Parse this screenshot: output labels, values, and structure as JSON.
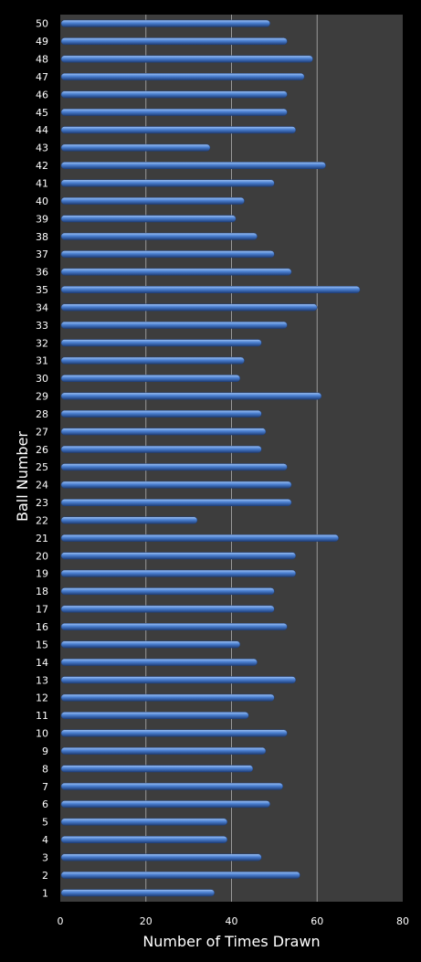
{
  "chart_data": {
    "type": "bar",
    "orientation": "horizontal",
    "xlabel": "Number of Times Drawn",
    "ylabel": "Ball Number",
    "xlim": [
      0,
      80
    ],
    "xticks": [
      0,
      20,
      40,
      60,
      80
    ],
    "grid": "vertical",
    "legend": "none",
    "categories": [
      "1",
      "2",
      "3",
      "4",
      "5",
      "6",
      "7",
      "8",
      "9",
      "10",
      "11",
      "12",
      "13",
      "14",
      "15",
      "16",
      "17",
      "18",
      "19",
      "20",
      "21",
      "22",
      "23",
      "24",
      "25",
      "26",
      "27",
      "28",
      "29",
      "30",
      "31",
      "32",
      "33",
      "34",
      "35",
      "36",
      "37",
      "38",
      "39",
      "40",
      "41",
      "42",
      "43",
      "44",
      "45",
      "46",
      "47",
      "48",
      "49",
      "50"
    ],
    "values": [
      36,
      56,
      47,
      39,
      39,
      49,
      52,
      45,
      48,
      53,
      44,
      50,
      55,
      46,
      42,
      53,
      50,
      50,
      55,
      55,
      65,
      32,
      54,
      54,
      53,
      47,
      48,
      47,
      61,
      42,
      43,
      47,
      53,
      60,
      70,
      54,
      50,
      46,
      41,
      43,
      50,
      62,
      35,
      55,
      53,
      53,
      57,
      59,
      53,
      49
    ]
  },
  "colors": {
    "background": "#000000",
    "plot_area": "#3d3d3d",
    "bar_fill": "#4a7fd0",
    "bar_highlight": "#9fc3f5",
    "bar_shadow": "#1f3f7a",
    "gridline": "#9a9a9a",
    "text": "#ffffff"
  }
}
